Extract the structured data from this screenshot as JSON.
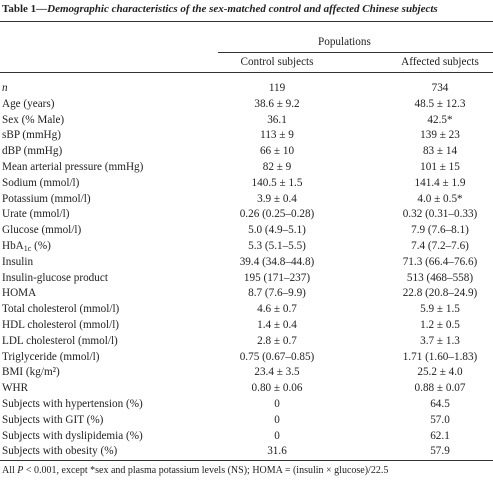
{
  "header": {
    "label": "Table 1—",
    "caption": "Demographic characteristics of the sex-matched control and affected Chinese subjects"
  },
  "table": {
    "group_header": "Populations",
    "columns": [
      "Control subjects",
      "Affected subjects"
    ],
    "rows": [
      {
        "label": "n",
        "italic": true,
        "values": [
          "119",
          "734"
        ]
      },
      {
        "label": "Age (years)",
        "values": [
          "38.6 ± 9.2",
          "48.5 ± 12.3"
        ]
      },
      {
        "label": "Sex (% Male)",
        "values": [
          "36.1",
          "42.5*"
        ]
      },
      {
        "label": "sBP (mmHg)",
        "values": [
          "113 ± 9",
          "139 ± 23"
        ]
      },
      {
        "label": "dBP (mmHg)",
        "values": [
          "66 ± 10",
          "83 ± 14"
        ]
      },
      {
        "label": "Mean arterial pressure (mmHg)",
        "values": [
          "82 ± 9",
          "101 ± 15"
        ]
      },
      {
        "label": "Sodium (mmol/l)",
        "values": [
          "140.5 ± 1.5",
          "141.4 ± 1.9"
        ]
      },
      {
        "label": "Potassium (mmol/l)",
        "values": [
          "3.9 ± 0.4",
          "4.0 ± 0.5*"
        ]
      },
      {
        "label": "Urate (mmol/l)",
        "values": [
          "0.26 (0.25–0.28)",
          "0.32 (0.31–0.33)"
        ]
      },
      {
        "label": "Glucose (mmol/l)",
        "values": [
          "5.0 (4.9–5.1)",
          "7.9 (7.6–8.1)"
        ]
      },
      {
        "label": [
          "HbA",
          "1c",
          " (%)"
        ],
        "values": [
          "5.3 (5.1–5.5)",
          "7.4 (7.2–7.6)"
        ]
      },
      {
        "label": "Insulin",
        "values": [
          "39.4 (34.8–44.8)",
          "71.3 (66.4–76.6)"
        ]
      },
      {
        "label": "Insulin-glucose product",
        "values": [
          "195 (171–237)",
          "513 (468–558)"
        ]
      },
      {
        "label": "HOMA",
        "values": [
          "8.7 (7.6–9.9)",
          "22.8 (20.8–24.9)"
        ]
      },
      {
        "label": "Total cholesterol (mmol/l)",
        "values": [
          "4.6 ± 0.7",
          "5.9 ± 1.5"
        ]
      },
      {
        "label": "HDL cholesterol (mmol/l)",
        "values": [
          "1.4 ± 0.4",
          "1.2 ± 0.5"
        ]
      },
      {
        "label": "LDL cholesterol (mmol/l)",
        "values": [
          "2.8 ± 0.7",
          "3.7 ± 1.3"
        ]
      },
      {
        "label": "Triglyceride (mmol/l)",
        "values": [
          "0.75 (0.67–0.85)",
          "1.71 (1.60–1.83)"
        ]
      },
      {
        "label": "BMI (kg/m²)",
        "values": [
          "23.4 ± 3.5",
          "25.2 ± 4.0"
        ]
      },
      {
        "label": "WHR",
        "values": [
          "0.80 ± 0.06",
          "0.88 ± 0.07"
        ]
      },
      {
        "label": "Subjects with hypertension (%)",
        "values": [
          "0",
          "64.5"
        ]
      },
      {
        "label": "Subjects with GIT (%)",
        "values": [
          "0",
          "57.0"
        ]
      },
      {
        "label": "Subjects with dyslipidemia (%)",
        "values": [
          "0",
          "62.1"
        ]
      },
      {
        "label": "Subjects with obesity (%)",
        "values": [
          "31.6",
          "57.9"
        ]
      }
    ]
  },
  "footnote": [
    "All ",
    "P",
    " < 0.001, except *sex and plasma potassium levels (NS); HOMA = (insulin × glucose)/22.5"
  ]
}
